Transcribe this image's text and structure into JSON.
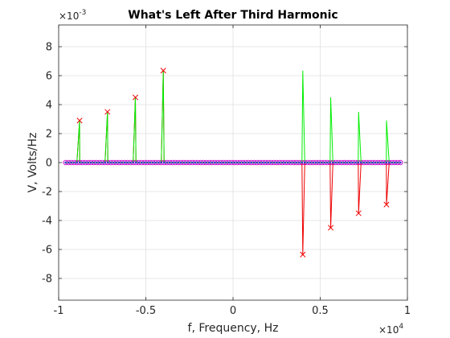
{
  "chart_data": {
    "type": "line",
    "title": "What's Left After Third Harmonic",
    "xlabel": "f, Frequency, Hz",
    "ylabel": "V, Volts/Hz",
    "x_exponent_base": "×10",
    "x_exponent": "4",
    "y_exponent_base": "×10",
    "y_exponent": "-3",
    "xlim": [
      -1,
      1
    ],
    "ylim": [
      -9.5,
      9.5
    ],
    "grid": true,
    "xticks": [
      -1,
      -0.5,
      0,
      0.5,
      1
    ],
    "xtick_labels": [
      "-1",
      "-0.5",
      "0",
      "0.5",
      "1"
    ],
    "yticks": [
      -8,
      -6,
      -4,
      -2,
      0,
      2,
      4,
      6,
      8
    ],
    "ytick_labels": [
      "-8",
      "-6",
      "-4",
      "-2",
      "0",
      "2",
      "4",
      "6",
      "8"
    ],
    "sample_range": [
      -0.96,
      0.96
    ],
    "sample_count": 120,
    "series": [
      {
        "kind": "line",
        "color": "#00ee00",
        "points": [
          {
            "x": -0.88,
            "y": 2.9
          },
          {
            "x": -0.72,
            "y": 3.5
          },
          {
            "x": -0.56,
            "y": 4.5
          },
          {
            "x": -0.4,
            "y": 6.35
          },
          {
            "x": 0.4,
            "y": 6.35
          },
          {
            "x": 0.56,
            "y": 4.5
          },
          {
            "x": 0.72,
            "y": 3.5
          },
          {
            "x": 0.88,
            "y": 2.9
          }
        ]
      },
      {
        "kind": "line-markers",
        "color": "#ee0000",
        "marker": "x",
        "points": [
          {
            "x": -0.88,
            "y": 2.9
          },
          {
            "x": -0.72,
            "y": 3.5
          },
          {
            "x": -0.56,
            "y": 4.5
          },
          {
            "x": -0.4,
            "y": 6.35
          },
          {
            "x": 0.4,
            "y": -6.35
          },
          {
            "x": 0.56,
            "y": -4.5
          },
          {
            "x": 0.72,
            "y": -3.5
          },
          {
            "x": 0.88,
            "y": -2.9
          }
        ]
      },
      {
        "kind": "markers",
        "color": "#3333cc",
        "edge_color": "#cc00cc",
        "marker": "o",
        "note": "every sample on the frequency grid sits at 0"
      }
    ]
  }
}
